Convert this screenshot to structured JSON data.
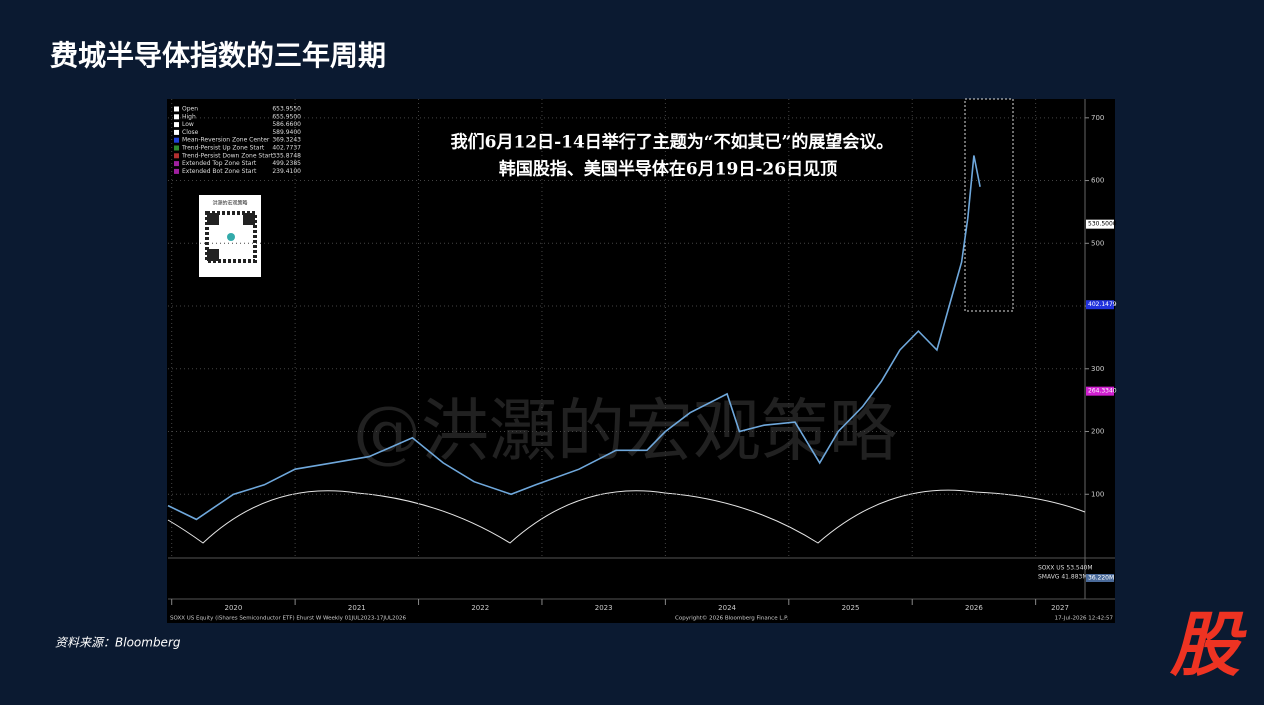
{
  "header": {
    "title": "费城半导体指数的三年周期"
  },
  "source": "资料来源：Bloomberg",
  "logo": "股",
  "chart_data": {
    "type": "line",
    "annotation": [
      "我们6月12日-14日举行了主题为“不如其已”的展望会议。",
      "韩国股指、美国半导体在6月19日-26日见顶"
    ],
    "watermark": "@洪灝的宏观策略",
    "qr_caption": "洪灝的宏观策略",
    "legend_items": [
      {
        "label": "Open",
        "value": "653.9550",
        "color": "#ffffff"
      },
      {
        "label": "High",
        "value": "655.9500",
        "color": "#ffffff"
      },
      {
        "label": "Low",
        "value": "586.6600",
        "color": "#ffffff"
      },
      {
        "label": "Close",
        "value": "589.9400",
        "color": "#ffffff"
      },
      {
        "label": "Mean-Reversion Zone Center",
        "value": "369.3243",
        "color": "#1f3fd6"
      },
      {
        "label": "Trend-Persist Up Zone Start",
        "value": "402.7737",
        "color": "#2e8b2e"
      },
      {
        "label": "Trend-Persist Down Zone Start",
        "value": "335.8748",
        "color": "#b33030"
      },
      {
        "label": "Extended Top Zone Start",
        "value": "499.2385",
        "color": "#a020a0"
      },
      {
        "label": "Extended Bot Zone Start",
        "value": "239.4100",
        "color": "#a020a0"
      }
    ],
    "axis_tags": [
      {
        "value": 530.5,
        "label": "530.5000",
        "color": "#ffffff"
      },
      {
        "value": 402.1479,
        "label": "402.1479",
        "color": "#2233dd"
      },
      {
        "value": 264.334,
        "label": "264.3340",
        "color": "#d020d0"
      }
    ],
    "volume_labels": [
      "SOXX US 53.540M",
      "SMAVG 41.883M",
      "36.220M"
    ],
    "footer": [
      "SOXX US Equity (iShares Semiconductor ETF) Ehurst W Weekly 01JUL2023-17JUL2026",
      "Copyright© 2026 Bloomberg Finance L.P.",
      "17-Jul-2026 12:42:57"
    ],
    "x": [
      2019.97,
      2020.2,
      2020.5,
      2020.75,
      2021.0,
      2021.3,
      2021.6,
      2021.95,
      2022.2,
      2022.45,
      2022.75,
      2022.95,
      2023.3,
      2023.6,
      2023.85,
      2024.0,
      2024.2,
      2024.5,
      2024.6,
      2024.8,
      2025.05,
      2025.25,
      2025.4,
      2025.6,
      2025.75,
      2025.9,
      2026.05,
      2026.2,
      2026.3,
      2026.4,
      2026.45,
      2026.5,
      2026.55
    ],
    "series": [
      {
        "name": "SOXX",
        "color": "#6fa8dc",
        "values": [
          82,
          60,
          100,
          115,
          140,
          150,
          160,
          190,
          150,
          120,
          100,
          115,
          140,
          170,
          170,
          200,
          230,
          260,
          200,
          210,
          215,
          150,
          200,
          240,
          280,
          330,
          360,
          330,
          400,
          470,
          540,
          640,
          590
        ]
      }
    ],
    "xlim": [
      2019.97,
      2027.4
    ],
    "xticks": [
      2020,
      2021,
      2022,
      2023,
      2024,
      2025,
      2026,
      2027
    ],
    "ylim": [
      0,
      730
    ],
    "yticks": [
      100,
      200,
      300,
      400,
      500,
      600,
      700
    ],
    "grid": true
  }
}
